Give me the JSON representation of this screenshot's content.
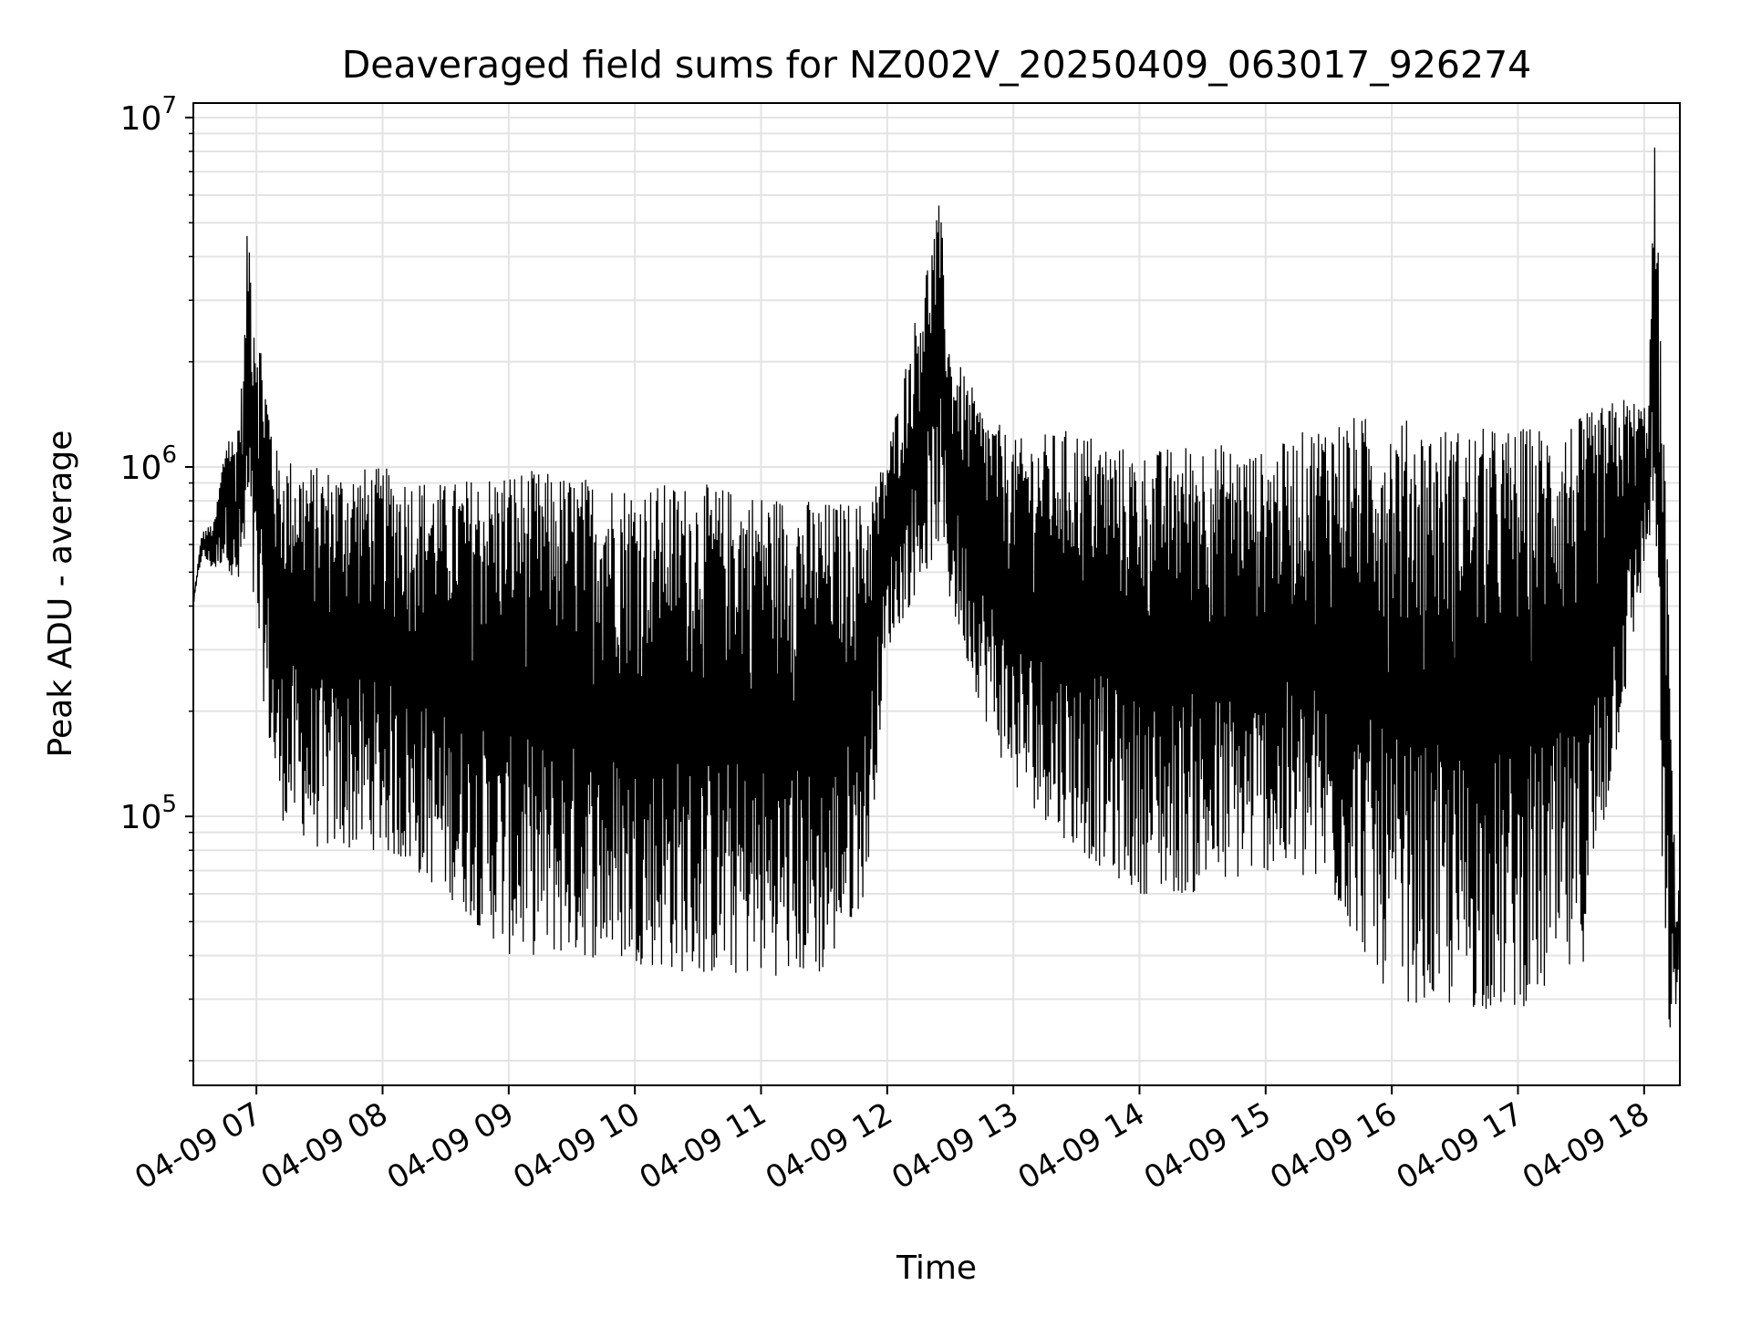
{
  "chart_data": {
    "type": "line",
    "title": "Deaveraged field sums for NZ002V_20250409_063017_926274",
    "xlabel": "Time",
    "ylabel": "Peak ADU - average",
    "yscale": "log",
    "ylim": [
      17000,
      11000000
    ],
    "xlim": [
      "2025-04-09 06:30",
      "2025-04-09 18:17"
    ],
    "x_ticks": [
      "04-09 07",
      "04-09 08",
      "04-09 09",
      "04-09 10",
      "04-09 11",
      "04-09 12",
      "04-09 13",
      "04-09 14",
      "04-09 15",
      "04-09 16",
      "04-09 17",
      "04-09 18"
    ],
    "y_ticks": [
      {
        "base": "10",
        "exp": "5",
        "value": 100000
      },
      {
        "base": "10",
        "exp": "6",
        "value": 1000000
      },
      {
        "base": "10",
        "exp": "7",
        "value": 10000000
      }
    ],
    "grid": true,
    "line_color": "#000000",
    "series": [
      {
        "x": [
          "2025-04-09 06:30",
          "2025-04-09 06:34",
          "2025-04-09 06:40",
          "2025-04-09 06:46",
          "2025-04-09 06:50",
          "2025-04-09 06:54",
          "2025-04-09 06:56",
          "2025-04-09 06:58",
          "2025-04-09 07:10",
          "2025-04-09 07:30",
          "2025-04-09 08:00",
          "2025-04-09 08:30",
          "2025-04-09 09:00",
          "2025-04-09 09:30",
          "2025-04-09 10:00",
          "2025-04-09 10:30",
          "2025-04-09 11:00",
          "2025-04-09 11:30",
          "2025-04-09 11:50",
          "2025-04-09 12:00",
          "2025-04-09 12:15",
          "2025-04-09 12:25",
          "2025-04-09 12:30",
          "2025-04-09 12:45",
          "2025-04-09 13:00",
          "2025-04-09 13:30",
          "2025-04-09 14:00",
          "2025-04-09 14:30",
          "2025-04-09 15:00",
          "2025-04-09 15:30",
          "2025-04-09 16:00",
          "2025-04-09 16:30",
          "2025-04-09 17:00",
          "2025-04-09 17:30",
          "2025-04-09 17:50",
          "2025-04-09 18:02",
          "2025-04-09 18:05",
          "2025-04-09 18:10",
          "2025-04-09 18:15",
          "2025-04-09 18:17"
        ],
        "upper": [
          420000,
          650000,
          700000,
          1300000,
          1200000,
          2000000,
          5800000,
          3500000,
          1100000,
          1000000,
          1000000,
          900000,
          1000000,
          950000,
          900000,
          900000,
          850000,
          800000,
          800000,
          1100000,
          3000000,
          5800000,
          2200000,
          1500000,
          1200000,
          1300000,
          1100000,
          1200000,
          1100000,
          1400000,
          1400000,
          1300000,
          1300000,
          1400000,
          1600000,
          1500000,
          8500000,
          1000000,
          60000,
          65000
        ],
        "lower": [
          400000,
          550000,
          500000,
          550000,
          400000,
          500000,
          600000,
          400000,
          100000,
          80000,
          80000,
          60000,
          40000,
          40000,
          38000,
          35000,
          35000,
          35000,
          60000,
          300000,
          450000,
          600000,
          400000,
          200000,
          120000,
          80000,
          60000,
          60000,
          70000,
          60000,
          30000,
          28000,
          28000,
          35000,
          200000,
          600000,
          700000,
          25000,
          22000,
          50000
        ]
      }
    ]
  }
}
